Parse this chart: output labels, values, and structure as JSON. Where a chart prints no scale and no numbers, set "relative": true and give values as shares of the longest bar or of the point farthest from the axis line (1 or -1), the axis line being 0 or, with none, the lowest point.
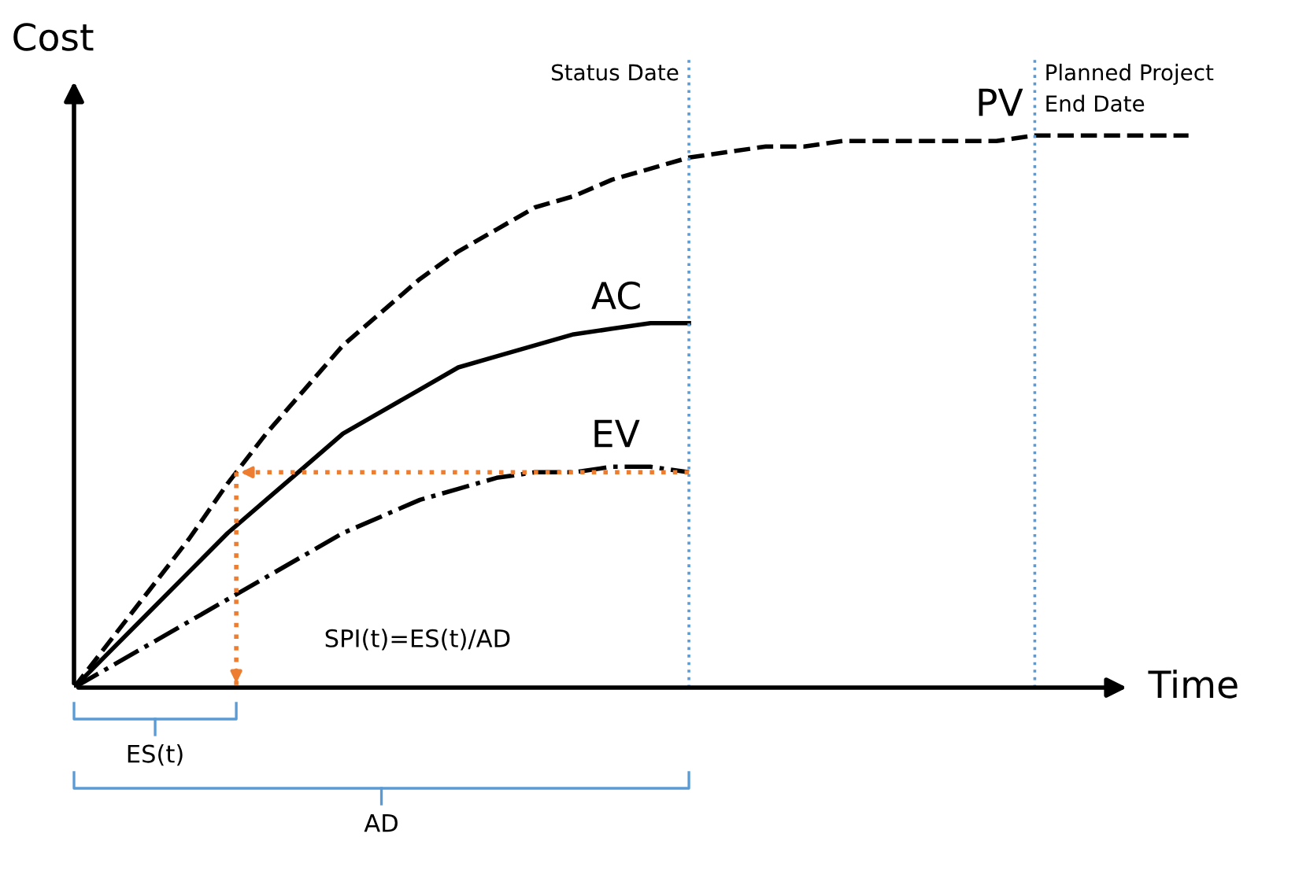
{
  "chart_data": {
    "type": "line",
    "relative": true,
    "xlabel": "Time",
    "ylabel": "Cost",
    "categories": [
      null,
      null,
      null,
      null,
      null,
      null,
      null,
      null,
      null,
      null,
      null,
      null,
      null,
      null,
      null,
      null,
      null,
      null,
      null,
      null,
      null,
      null,
      null,
      null,
      null,
      null,
      null,
      null,
      null,
      null
    ],
    "series": [
      {
        "name": "PV",
        "color": "#000000",
        "line_style": "dashed",
        "values": [
          0,
          0.09,
          0.18,
          0.27,
          0.37,
          0.46,
          0.54,
          0.62,
          0.68,
          0.74,
          0.79,
          0.83,
          0.87,
          0.89,
          0.92,
          0.94,
          0.96,
          0.97,
          0.98,
          0.98,
          0.99,
          0.99,
          0.99,
          0.99,
          0.99,
          1,
          1,
          1,
          1,
          1
        ]
      },
      {
        "name": "AC",
        "color": "#000000",
        "line_style": "solid",
        "values": [
          0,
          0.07,
          0.14,
          0.21,
          0.28,
          0.34,
          0.4,
          0.46,
          0.5,
          0.54,
          0.58,
          0.6,
          0.62,
          0.64,
          0.65,
          0.66,
          0.66,
          null,
          null,
          null,
          null,
          null,
          null,
          null,
          null,
          null,
          null,
          null,
          null,
          null
        ]
      },
      {
        "name": "EV",
        "color": "#000000",
        "line_style": "dashdot",
        "values": [
          0,
          0.04,
          0.08,
          0.12,
          0.16,
          0.2,
          0.24,
          0.28,
          0.31,
          0.34,
          0.36,
          0.38,
          0.39,
          0.39,
          0.4,
          0.4,
          0.39,
          null,
          null,
          null,
          null,
          null,
          null,
          null,
          null,
          null,
          null,
          null,
          null,
          null
        ]
      }
    ],
    "annotations": [
      "SPI(t)=ES(t)/AD",
      "ES(t)",
      "AD",
      "Status Date",
      "Planned Project\nEnd Date"
    ]
  }
}
